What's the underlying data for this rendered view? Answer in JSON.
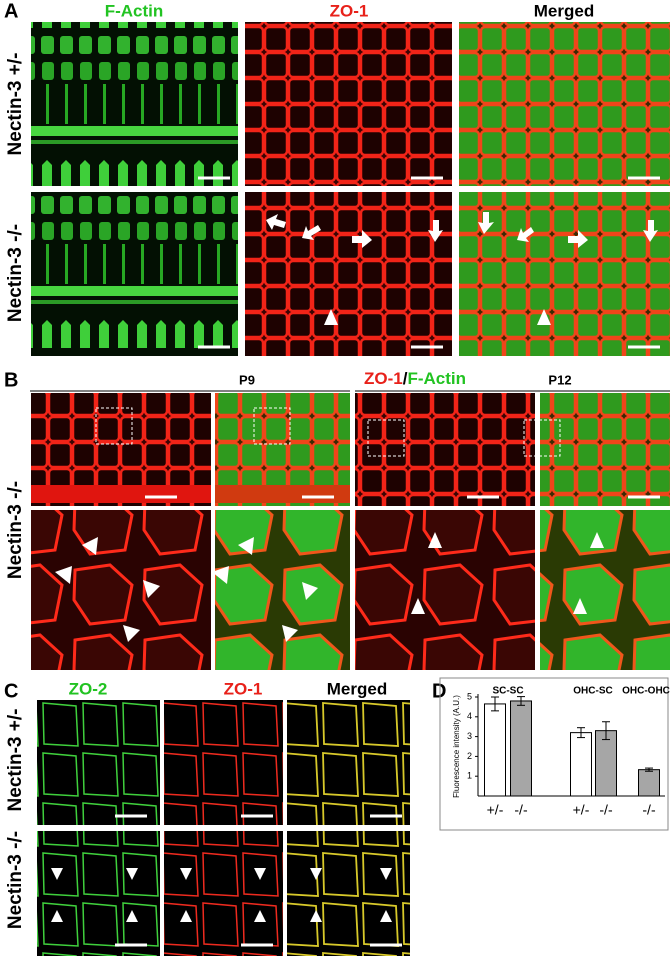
{
  "panels": {
    "a": {
      "label": "A",
      "columns": [
        "F-Actin",
        "ZO-1",
        "Merged"
      ],
      "rows": [
        "Nectin-3 +/-",
        "Nectin-3 -/-"
      ]
    },
    "b": {
      "label": "B",
      "stains": [
        "ZO-1",
        "/",
        "F-Actin"
      ],
      "ages": [
        "P9",
        "P12"
      ],
      "row": "Nectin-3 -/-"
    },
    "c": {
      "label": "C",
      "columns": [
        "ZO-2",
        "ZO-1",
        "Merged"
      ],
      "rows": [
        "Nectin-3 +/-",
        "Nectin-3 -/-"
      ]
    },
    "d": {
      "label": "D"
    }
  },
  "chart_data": {
    "type": "bar",
    "ylabel": "Fluorescence intensity (A.U.)",
    "groups": [
      "SC-SC",
      "OHC-SC",
      "OHC-OHC"
    ],
    "categories": [
      "+/-",
      "-/-",
      "+/-",
      "-/-",
      "-/-"
    ],
    "values": [
      4.65,
      4.8,
      3.2,
      3.3,
      1.33
    ],
    "errors": [
      0.35,
      0.22,
      0.25,
      0.45,
      0.08
    ],
    "colors": [
      "#ffffff",
      "#a6a6a6",
      "#ffffff",
      "#a6a6a6",
      "#a6a6a6"
    ],
    "ylim": [
      0,
      5
    ],
    "yticks": [
      1,
      2,
      3,
      4,
      5
    ]
  }
}
